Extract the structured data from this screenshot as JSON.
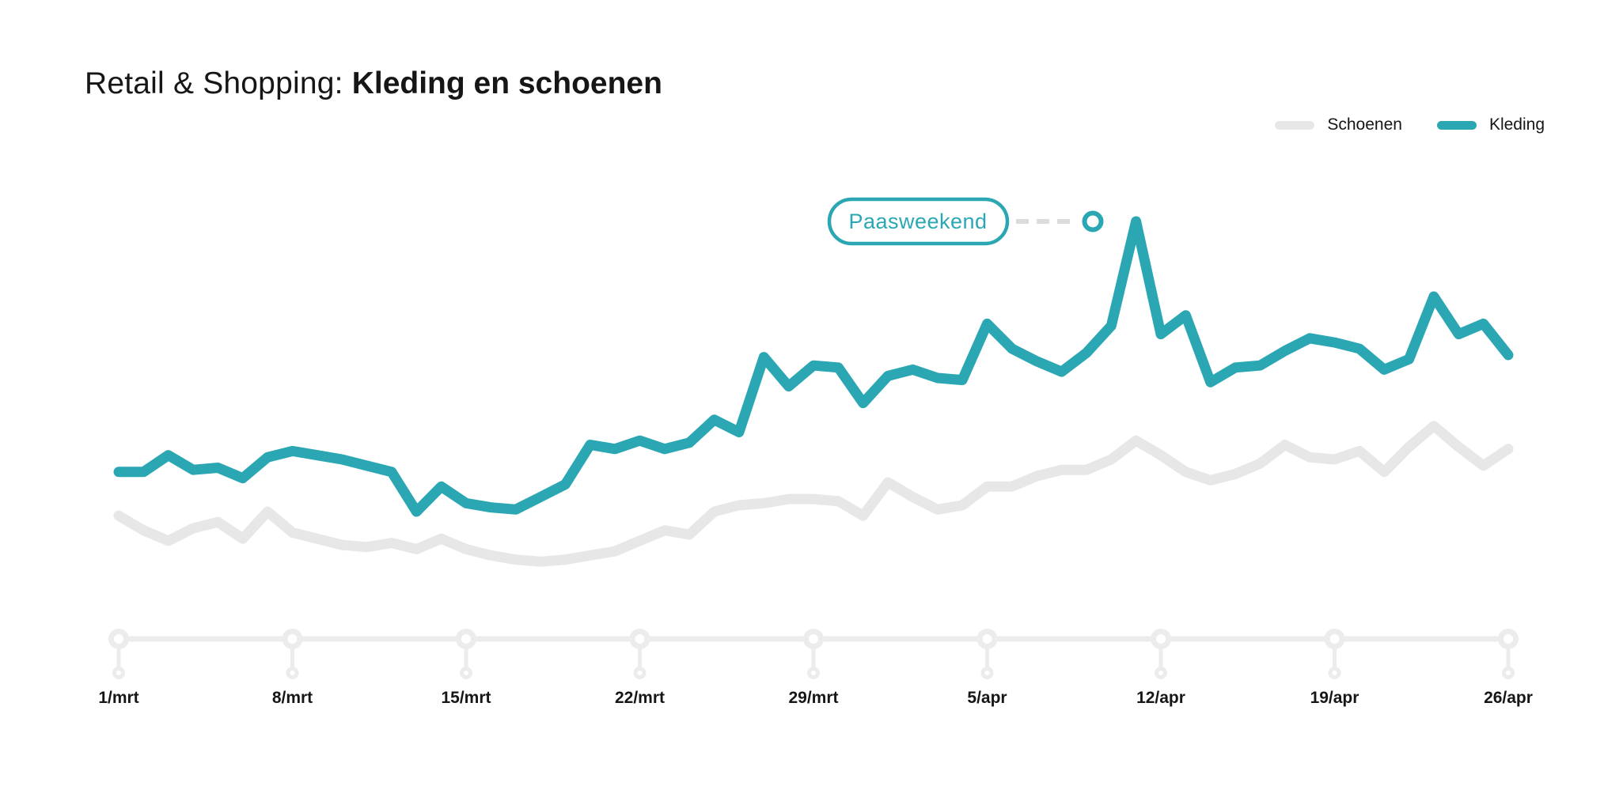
{
  "title": {
    "prefix": "Retail & Shopping: ",
    "highlight": "Kleding en schoenen"
  },
  "legend": [
    {
      "label": "Schoenen",
      "color": "#e7e7e7"
    },
    {
      "label": "Kleding",
      "color": "#2ba7b4"
    }
  ],
  "annotation": {
    "label": "Paasweekend"
  },
  "colors": {
    "accent_teal": "#2ba7b4",
    "series_gray": "#e7e7e7",
    "axis_gray": "#ececec",
    "dash_gray": "#dcdcdc",
    "text_dark": "#161616",
    "background": "#ffffff"
  },
  "chart_data": {
    "type": "line",
    "title": "Retail & Shopping: Kleding en schoenen",
    "x_tick_labels": [
      "1/mrt",
      "8/mrt",
      "15/mrt",
      "22/mrt",
      "29/mrt",
      "5/apr",
      "12/apr",
      "19/apr",
      "26/apr"
    ],
    "x_range": [
      "1/mrt",
      "26/apr"
    ],
    "points_per_series": 57,
    "ylim": [
      0,
      100
    ],
    "grid": false,
    "legend_position": "top-right",
    "annotation": {
      "text": "Paasweekend",
      "points_at": "Kleding peak (value 100) between 5/apr and 12/apr",
      "peak_value": 100
    },
    "series": [
      {
        "name": "Schoenen",
        "color": "#e7e7e7",
        "values": [
          29.5,
          26,
          23.5,
          26.5,
          28,
          24,
          30.5,
          25.5,
          24,
          22.5,
          22,
          23,
          21.5,
          24,
          21.5,
          20,
          19,
          18.5,
          19,
          20,
          21,
          23.5,
          26,
          25,
          30.5,
          32,
          32.5,
          33.5,
          33.5,
          33,
          29.5,
          37.5,
          34,
          31,
          32,
          36.5,
          36.5,
          39,
          40.5,
          40.5,
          43,
          47.5,
          44,
          40,
          38,
          39.5,
          42,
          46.5,
          43.5,
          43,
          45,
          40,
          46,
          51,
          46,
          41.5,
          45.5
        ]
      },
      {
        "name": "Kleding",
        "color": "#2ba7b4",
        "values": [
          40,
          40,
          44,
          40.5,
          41,
          38.5,
          43.5,
          45,
          44,
          43,
          41.5,
          40,
          30.5,
          36.5,
          32.5,
          31.5,
          31,
          34,
          37,
          46.5,
          45.5,
          47.5,
          45.5,
          47,
          52.5,
          49.5,
          67.5,
          60.5,
          65.5,
          65,
          56.5,
          63,
          64.5,
          62.5,
          62,
          75.5,
          69.5,
          66.5,
          64,
          68.5,
          75,
          100,
          73,
          77.5,
          61.5,
          65,
          65.5,
          69,
          72,
          71,
          69.5,
          64.5,
          67,
          82,
          73,
          75.5,
          68
        ]
      }
    ]
  }
}
